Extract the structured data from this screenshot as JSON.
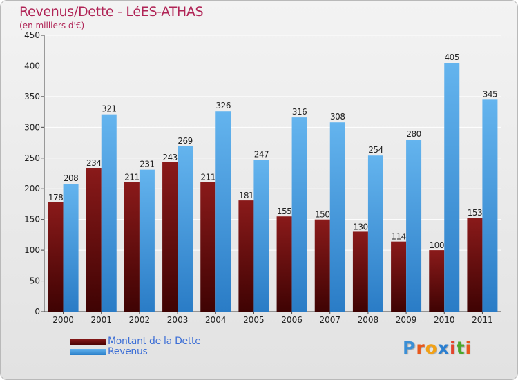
{
  "header": {
    "title": "Revenus/Dette - LéES-ATHAS",
    "subtitle": "(en milliers d'€)"
  },
  "legend": {
    "debt_label": "Montant de la Dette",
    "revenue_label": "Revenus"
  },
  "logo": {
    "letters": [
      "P",
      "r",
      "o",
      "x",
      "i",
      "t",
      "i"
    ],
    "colors": [
      "#3a8fd6",
      "#e8581c",
      "#f2a115",
      "#2b7fd0",
      "#e2452d",
      "#4aa82a",
      "#e8581c"
    ]
  },
  "colors": {
    "debt": "#6d0f0f",
    "revenue": "#4da3e6",
    "title": "#b02456",
    "legend_text": "#3d6fd6"
  },
  "chart_data": {
    "type": "bar",
    "categories": [
      "2000",
      "2001",
      "2002",
      "2003",
      "2004",
      "2005",
      "2006",
      "2007",
      "2008",
      "2009",
      "2010",
      "2011"
    ],
    "series": [
      {
        "name": "Montant de la Dette",
        "values": [
          178,
          234,
          211,
          243,
          211,
          181,
          155,
          150,
          130,
          114,
          100,
          153
        ]
      },
      {
        "name": "Revenus",
        "values": [
          208,
          321,
          231,
          269,
          326,
          247,
          316,
          308,
          254,
          280,
          405,
          345
        ]
      }
    ],
    "ylim": [
      0,
      450
    ],
    "yticks": [
      0,
      50,
      100,
      150,
      200,
      250,
      300,
      350,
      400,
      450
    ],
    "grid": true,
    "legend_position": "bottom-left"
  }
}
